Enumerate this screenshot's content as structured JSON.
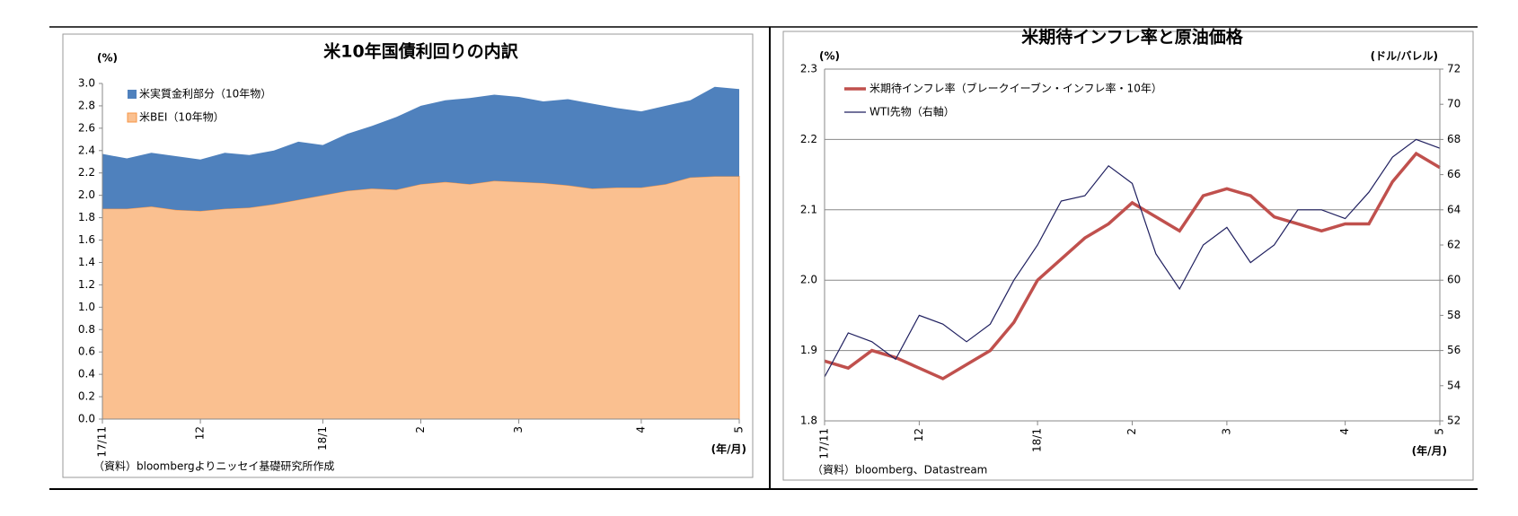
{
  "chart_data": [
    {
      "type": "stacked-area",
      "title": "米10年国債利回りの内訳",
      "ylabel": "(%)",
      "xlabel": "(年/月)",
      "note": "（資料）bloombergよりニッセイ基礎研究所作成",
      "categories": [
        "17/11",
        null,
        null,
        null,
        "12",
        null,
        null,
        null,
        null,
        "18/1",
        null,
        null,
        null,
        "2",
        null,
        null,
        null,
        "3",
        null,
        null,
        null,
        null,
        "4",
        null,
        null,
        null,
        "5"
      ],
      "series": [
        {
          "name": "米実質金利部分（10年物）",
          "color": "#4f81bd",
          "values": [
            0.49,
            0.45,
            0.48,
            0.48,
            0.46,
            0.5,
            0.47,
            0.48,
            0.52,
            0.45,
            0.51,
            0.56,
            0.65,
            0.7,
            0.73,
            0.77,
            0.77,
            0.76,
            0.73,
            0.77,
            0.76,
            0.71,
            0.68,
            0.7,
            0.69,
            0.8,
            0.78
          ]
        },
        {
          "name": "米BEI（10年物）",
          "color": "#fac090",
          "values": [
            1.88,
            1.88,
            1.9,
            1.87,
            1.86,
            1.88,
            1.89,
            1.92,
            1.96,
            2.0,
            2.04,
            2.06,
            2.05,
            2.1,
            2.12,
            2.1,
            2.13,
            2.12,
            2.11,
            2.09,
            2.06,
            2.07,
            2.07,
            2.1,
            2.16,
            2.17,
            2.17
          ]
        }
      ],
      "ylim": [
        0,
        3.0
      ],
      "yticks": [
        {
          "value": 0,
          "label": "0.0"
        },
        0.2,
        0.4,
        0.6,
        0.8,
        {
          "value": 1,
          "label": "1.0"
        },
        1.2,
        1.4,
        1.6,
        1.8,
        {
          "value": 2,
          "label": "2.0"
        },
        2.2,
        2.4,
        2.6,
        2.8,
        {
          "value": 3,
          "label": "3.0"
        }
      ],
      "grid": false,
      "legend": "upper-left"
    },
    {
      "type": "line",
      "title": "米期待インフレ率と原油価格",
      "ylabel": "(%)",
      "y2label": "(ドル/バレル)",
      "xlabel": "(年/月)",
      "note": "（資料）bloomberg、Datastream",
      "categories": [
        "17/11",
        null,
        null,
        null,
        "12",
        null,
        null,
        null,
        null,
        "18/1",
        null,
        null,
        null,
        "2",
        null,
        null,
        null,
        "3",
        null,
        null,
        null,
        null,
        "4",
        null,
        null,
        null,
        "5"
      ],
      "series": [
        {
          "name": "米期待インフレ率（ブレークイーブン・インフレ率・10年）",
          "color": "#c0504d",
          "values": [
            1.885,
            1.875,
            1.9,
            1.89,
            1.875,
            1.86,
            1.88,
            1.9,
            1.94,
            2.0,
            2.03,
            2.06,
            2.08,
            2.11,
            2.09,
            2.07,
            2.12,
            2.13,
            2.12,
            2.09,
            2.08,
            2.07,
            2.08,
            2.08,
            2.14,
            2.18,
            2.16
          ]
        },
        {
          "name": "WTI先物（右軸）",
          "color": "#1f1f5f",
          "axis": "y2",
          "values": [
            54.5,
            57,
            56.5,
            55.5,
            58,
            57.5,
            56.5,
            57.5,
            60,
            62,
            64.5,
            64.8,
            66.5,
            65.5,
            61.5,
            59.5,
            62,
            63,
            61,
            62,
            64,
            64,
            63.5,
            65,
            67,
            68,
            67.5
          ]
        }
      ],
      "ylim": [
        1.8,
        2.3
      ],
      "yticks": [
        1.8,
        1.9,
        {
          "value": 2,
          "label": "2.0"
        },
        2.1,
        2.2,
        2.3
      ],
      "y2lim": [
        52,
        72
      ],
      "y2ticks": [
        52,
        54,
        56,
        58,
        60,
        62,
        64,
        66,
        68,
        70,
        72
      ],
      "grid": true,
      "legend": "upper-left"
    }
  ]
}
